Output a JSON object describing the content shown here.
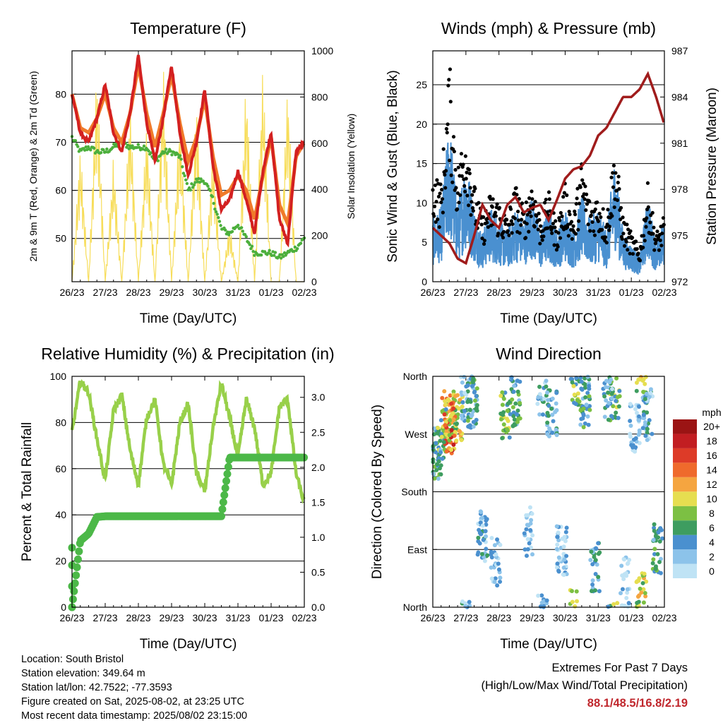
{
  "x_tick_labels": [
    "26/23",
    "27/23",
    "28/23",
    "29/23",
    "30/23",
    "31/23",
    "01/23",
    "02/23"
  ],
  "panels": {
    "temperature": {
      "title": "Temperature (F)",
      "xlabel": "Time (Day/UTC)",
      "ylabel_left": "2m & 9m T (Red, Orange) & 2m Td (Green)",
      "ylabel_right": "Solar Insolation (Yellow)",
      "left_ticks": [
        "50",
        "60",
        "70",
        "80"
      ],
      "right_ticks": [
        "0",
        "200",
        "400",
        "600",
        "800",
        "1000"
      ]
    },
    "winds": {
      "title": "Winds (mph) & Pressure (mb)",
      "xlabel": "Time (Day/UTC)",
      "ylabel_left": "Sonic Wind & Gust (Blue, Black)",
      "ylabel_right": "Station Pressure (Maroon)",
      "left_ticks": [
        "0",
        "5",
        "10",
        "15",
        "20",
        "25"
      ],
      "right_ticks": [
        "972",
        "975",
        "978",
        "981",
        "984",
        "987"
      ]
    },
    "humidity": {
      "title": "Relative Humidity (%) & Precipitation (in)",
      "xlabel": "Time (Day/UTC)",
      "ylabel_left": "Percent & Total Rainfall",
      "left_ticks": [
        "0",
        "20",
        "40",
        "60",
        "80",
        "100"
      ],
      "right_ticks": [
        "0.0",
        "0.5",
        "1.0",
        "1.5",
        "2.0",
        "2.5",
        "3.0"
      ]
    },
    "direction": {
      "title": "Wind Direction",
      "xlabel": "Time (Day/UTC)",
      "ylabel_left": "Direction (Colored By Speed)",
      "left_ticks": [
        "North",
        "East",
        "South",
        "West",
        "North"
      ],
      "colorbar_title": "mph",
      "colorbar_labels": [
        "0",
        "2",
        "4",
        "6",
        "8",
        "10",
        "12",
        "14",
        "16",
        "18",
        "20+"
      ]
    }
  },
  "info": {
    "location": "Location: South Bristol",
    "elevation": "Station elevation: 349.64 m",
    "latlon": "Station lat/lon: 42.7522; -77.3593",
    "created": "Figure created on Sat, 2025-08-02, at 23:25 UTC",
    "recent": "Most recent data timestamp: 2025/08/02 23:15:00"
  },
  "extremes": {
    "title": "Extremes For Past 7 Days",
    "subtitle": "(High/Low/Max Wind/Total Precipitation)",
    "values": "88.1/48.5/16.8/2.19"
  },
  "colors": {
    "temp_2m": "#d32020",
    "temp_9m": "#f07a2a",
    "dewpoint": "#4caf3c",
    "solar": "#f7dd5a",
    "wind": "#4a90d0",
    "gust": "#000000",
    "pressure": "#a01c1c",
    "rh": "#98d04a",
    "precip": "#4cb848",
    "colorbar": [
      "#bfe3f5",
      "#8cc3ea",
      "#4a90cf",
      "#3e9d60",
      "#7cc043",
      "#e6de50",
      "#f5a540",
      "#ef6a2c",
      "#dd3b28",
      "#c21e22",
      "#9b1414"
    ]
  },
  "chart_data": [
    {
      "type": "line",
      "title": "Temperature (F)",
      "xlabel": "Time (Day/UTC)",
      "ylabel": "2m & 9m T (Red, Orange) & 2m Td (Green)",
      "y2label": "Solar Insolation (Yellow)",
      "x_range": [
        26,
        33
      ],
      "ylim": [
        41,
        89
      ],
      "y2lim": [
        0,
        1000
      ],
      "x": [
        26.0,
        26.25,
        26.5,
        26.75,
        27.0,
        27.25,
        27.5,
        27.75,
        28.0,
        28.25,
        28.5,
        28.75,
        29.0,
        29.25,
        29.5,
        29.75,
        30.0,
        30.25,
        30.5,
        30.75,
        31.0,
        31.25,
        31.5,
        31.75,
        32.0,
        32.25,
        32.5,
        32.75,
        33.0
      ],
      "series": [
        {
          "name": "2m T",
          "values": [
            80,
            72,
            70,
            75,
            82,
            72,
            68,
            76,
            88,
            74,
            66,
            75,
            86,
            72,
            63,
            70,
            81,
            65,
            56,
            58,
            64,
            58,
            51,
            64,
            72,
            54,
            49,
            68,
            70
          ]
        },
        {
          "name": "9m T",
          "values": [
            80,
            73,
            72,
            75,
            80,
            73,
            70,
            76,
            86,
            76,
            69,
            76,
            84,
            74,
            66,
            71,
            79,
            67,
            59,
            60,
            63,
            60,
            54,
            63,
            71,
            57,
            53,
            67,
            70
          ]
        },
        {
          "name": "2m Td",
          "values": [
            71,
            68,
            69,
            68,
            68,
            69,
            70,
            69,
            69,
            69,
            66,
            68,
            68,
            67,
            60,
            62,
            62,
            58,
            52,
            51,
            53,
            50,
            47,
            47,
            47,
            46,
            47,
            48,
            50
          ]
        },
        {
          "name": "Solar Insolation",
          "axis": "right",
          "values": [
            0,
            600,
            0,
            950,
            0,
            550,
            0,
            800,
            0,
            700,
            0,
            950,
            0,
            750,
            0,
            800,
            0,
            600,
            0,
            250,
            0,
            900,
            0,
            950,
            0,
            0,
            880,
            0,
            0
          ]
        }
      ]
    },
    {
      "type": "line",
      "title": "Winds (mph) & Pressure (mb)",
      "xlabel": "Time (Day/UTC)",
      "ylabel": "Sonic Wind & Gust (Blue, Black)",
      "y2label": "Station Pressure (Maroon)",
      "x_range": [
        26,
        33
      ],
      "ylim": [
        0,
        29.3
      ],
      "y2lim": [
        972,
        987
      ],
      "x": [
        26.0,
        26.25,
        26.5,
        26.75,
        27.0,
        27.25,
        27.5,
        27.75,
        28.0,
        28.25,
        28.5,
        28.75,
        29.0,
        29.25,
        29.5,
        29.75,
        30.0,
        30.25,
        30.5,
        30.75,
        31.0,
        31.25,
        31.5,
        31.75,
        32.0,
        32.25,
        32.5,
        32.75,
        33.0
      ],
      "series": [
        {
          "name": "Sonic Wind",
          "values": [
            5,
            6,
            13,
            6,
            10,
            6,
            4,
            6,
            5,
            4,
            6,
            5,
            7,
            4,
            6,
            4,
            6,
            4,
            7,
            5,
            6,
            4,
            10,
            4,
            3,
            2,
            7,
            3,
            5
          ]
        },
        {
          "name": "Gust",
          "values": [
            14,
            12,
            27,
            14,
            20,
            12,
            8,
            11,
            10,
            8,
            12,
            9,
            13,
            8,
            11,
            7,
            12,
            8,
            15,
            10,
            11,
            8,
            17,
            8,
            6,
            4,
            12,
            6,
            8
          ]
        },
        {
          "name": "Station Pressure",
          "axis": "right",
          "values": [
            975.5,
            975,
            974.5,
            973.5,
            973.2,
            975,
            977,
            976,
            975.5,
            977,
            977.5,
            976.5,
            976.8,
            977,
            976,
            977.3,
            978.7,
            979.3,
            979.5,
            980.2,
            981.5,
            982,
            983,
            984,
            984,
            984.5,
            985.5,
            984,
            982.2
          ]
        }
      ]
    },
    {
      "type": "line",
      "title": "Relative Humidity (%) & Precipitation (in)",
      "xlabel": "Time (Day/UTC)",
      "ylabel": "Percent & Total Rainfall",
      "x_range": [
        26,
        33
      ],
      "ylim": [
        0,
        100
      ],
      "y2lim": [
        0,
        3.3
      ],
      "x": [
        26.0,
        26.25,
        26.5,
        26.75,
        27.0,
        27.25,
        27.5,
        27.75,
        28.0,
        28.25,
        28.5,
        28.75,
        29.0,
        29.25,
        29.5,
        29.75,
        30.0,
        30.25,
        30.5,
        30.75,
        31.0,
        31.25,
        31.5,
        31.75,
        32.0,
        32.25,
        32.5,
        32.75,
        33.0
      ],
      "series": [
        {
          "name": "Relative Humidity",
          "values": [
            76,
            98,
            93,
            73,
            55,
            85,
            92,
            68,
            53,
            82,
            90,
            62,
            53,
            80,
            88,
            58,
            50,
            78,
            97,
            82,
            65,
            90,
            78,
            53,
            58,
            87,
            90,
            58,
            45
          ]
        },
        {
          "name": "Total Rainfall",
          "axis": "right",
          "values": [
            0,
            0.95,
            1.05,
            1.29,
            1.3,
            1.3,
            1.3,
            1.3,
            1.3,
            1.3,
            1.3,
            1.3,
            1.3,
            1.3,
            1.3,
            1.3,
            1.3,
            1.3,
            1.3,
            2.14,
            2.14,
            2.14,
            2.14,
            2.14,
            2.14,
            2.14,
            2.14,
            2.14,
            2.14
          ]
        }
      ]
    },
    {
      "type": "scatter",
      "title": "Wind Direction",
      "xlabel": "Time (Day/UTC)",
      "ylabel": "Direction (Colored By Speed)",
      "x_range": [
        26,
        33
      ],
      "ylim": [
        0,
        360
      ],
      "colorbar": {
        "title": "mph",
        "labels": [
          "0",
          "2",
          "4",
          "6",
          "8",
          "10",
          "12",
          "14",
          "16",
          "18",
          "20+"
        ]
      },
      "x": [
        26.1,
        26.25,
        26.4,
        26.5,
        26.6,
        26.75,
        27.0,
        27.2,
        27.5,
        27.9,
        28.2,
        28.5,
        28.9,
        29.3,
        29.6,
        29.9,
        30.3,
        30.6,
        30.9,
        31.3,
        31.5,
        31.8,
        32.1,
        32.3,
        32.5,
        32.8
      ],
      "y": [
        240,
        270,
        300,
        280,
        285,
        300,
        330,
        320,
        110,
        70,
        300,
        320,
        120,
        340,
        300,
        90,
        350,
        320,
        60,
        330,
        330,
        40,
        280,
        15,
        300,
        90
      ],
      "speed": [
        6,
        8,
        12,
        16,
        12,
        10,
        4,
        6,
        4,
        3,
        8,
        6,
        3,
        4,
        5,
        3,
        8,
        6,
        5,
        4,
        8,
        2,
        3,
        10,
        4,
        6
      ]
    }
  ]
}
